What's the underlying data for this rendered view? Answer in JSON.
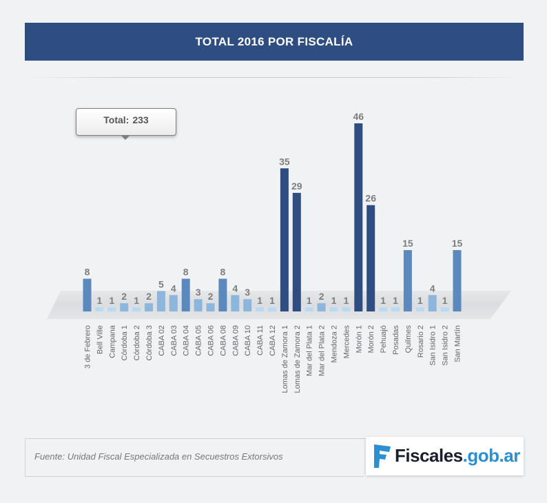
{
  "chart_data": {
    "type": "bar",
    "title": "TOTAL 2016 POR FISCALÍA",
    "total_label": "Total:",
    "total_value": "233",
    "categories": [
      "3 de Febrero",
      "Bell Ville",
      "Campana",
      "Córdoba 1",
      "Córdoba 2",
      "Córdoba 3",
      "CABA 02",
      "CABA 03",
      "CABA 04",
      "CABA 05",
      "CABA 06",
      "CABA 08",
      "CABA 09",
      "CABA 10",
      "CABA 11",
      "CABA 12",
      "Lomas de Zamora 1",
      "Lomas de Zamora 2",
      "Mar del Plata 1",
      "Mar del Plata 2",
      "Mendoza 2",
      "Mercedes",
      "Morón 1",
      "Morón 2",
      "Pehuajó",
      "Posadas",
      "Quilmes",
      "Rosario 2",
      "San Isidro 1",
      "San Isidro 2",
      "San Martín"
    ],
    "values": [
      8,
      1,
      1,
      2,
      1,
      2,
      5,
      4,
      8,
      3,
      2,
      8,
      4,
      3,
      1,
      1,
      35,
      29,
      1,
      2,
      1,
      1,
      46,
      26,
      1,
      1,
      15,
      1,
      4,
      1,
      15
    ],
    "xlabel": "",
    "ylabel": "",
    "ylim": [
      0,
      46
    ],
    "colors": {
      "very_low": "#b7dbf2",
      "low": "#8db6dc",
      "mid": "#5b88bd",
      "high": "#2e4d81",
      "label": "#7d7d7d",
      "axis_label": "#666666"
    }
  },
  "footer": {
    "source": "Fuente: Unidad Fiscal Especializada en Secuestros Extorsivos"
  },
  "logo": {
    "text": "Fiscales.gob.ar",
    "primary": "Fiscales",
    "secondary": ".gob.ar",
    "accent": "#2b8fd1"
  }
}
